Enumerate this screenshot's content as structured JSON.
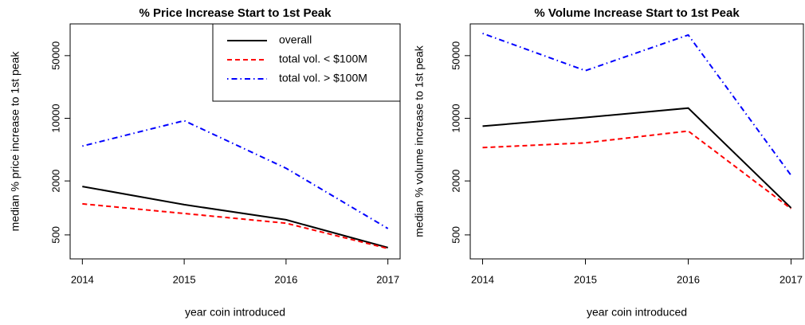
{
  "chart_data": [
    {
      "type": "line",
      "title": "% Price Increase Start to 1st Peak",
      "xlabel": "year coin introduced",
      "ylabel": "median % price increase to 1st peak",
      "x": [
        2014,
        2015,
        2016,
        2017
      ],
      "xlim": [
        2013.88,
        2017.12
      ],
      "xticks": [
        2014,
        2015,
        2016,
        2017
      ],
      "ylog": true,
      "ylim": [
        270,
        113000
      ],
      "yticks": [
        500,
        2000,
        10000,
        50000
      ],
      "legend": "topright",
      "series": [
        {
          "name": "overall",
          "color": "#000000",
          "linestyle": "solid",
          "values": [
            1735,
            1087,
            738,
            360
          ]
        },
        {
          "name": "total vol. < $100M",
          "color": "#ff0000",
          "linestyle": "dashed",
          "values": [
            1110,
            867,
            676,
            352
          ]
        },
        {
          "name": "total vol. > $100M",
          "color": "#0000ff",
          "linestyle": "dotdash",
          "values": [
            4900,
            9400,
            2770,
            589
          ]
        }
      ]
    },
    {
      "type": "line",
      "title": "% Volume Increase Start to 1st Peak",
      "xlabel": "year coin introduced",
      "ylabel": "median % volume increase to 1st peak",
      "x": [
        2014,
        2015,
        2016,
        2017
      ],
      "xlim": [
        2013.88,
        2017.12
      ],
      "xticks": [
        2014,
        2015,
        2016,
        2017
      ],
      "ylog": true,
      "ylim": [
        270,
        113000
      ],
      "yticks": [
        500,
        2000,
        10000,
        50000
      ],
      "series": [
        {
          "name": "overall",
          "color": "#000000",
          "linestyle": "solid",
          "values": [
            8160,
            10200,
            13000,
            1000
          ]
        },
        {
          "name": "total vol. < $100M",
          "color": "#ff0000",
          "linestyle": "dashed",
          "values": [
            4710,
            5320,
            7200,
            980
          ]
        },
        {
          "name": "total vol. > $100M",
          "color": "#0000ff",
          "linestyle": "dotdash",
          "values": [
            88500,
            34000,
            85000,
            2310
          ]
        }
      ]
    }
  ]
}
